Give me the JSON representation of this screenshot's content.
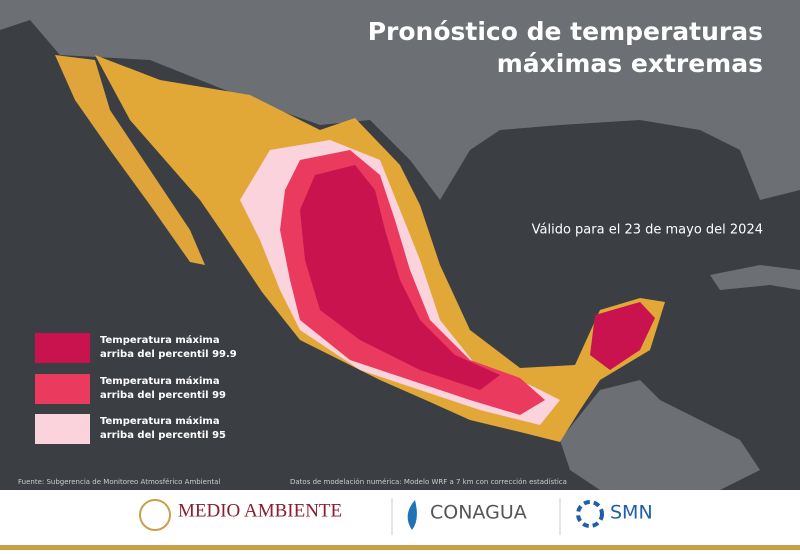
{
  "header": {
    "title_lines": [
      "Pronóstico de temperaturas",
      "máximas extremas"
    ],
    "valid_date": "Válido para el 23 de mayo del 2024"
  },
  "legend": {
    "items": [
      {
        "lines": [
          "Temperatura máxima",
          "arriba del percentil 99.9"
        ],
        "color": "#c8134f"
      },
      {
        "lines": [
          "Temperatura máxima",
          "arriba del percentil 99"
        ],
        "color": "#ea3a5e"
      },
      {
        "lines": [
          "Temperatura máxima",
          "arriba del percentil 95"
        ],
        "color": "#fbd3dc"
      }
    ]
  },
  "sources": {
    "source": "Fuente: Subgerencia de Monitoreo Atmosférico Ambiental",
    "model": "Datos de modelación numérica: Modelo WRF a 7 km con corrección estadística"
  },
  "footer": {
    "logos": [
      "MEDIO AMBIENTE",
      "CONAGUA",
      "SMN"
    ]
  }
}
